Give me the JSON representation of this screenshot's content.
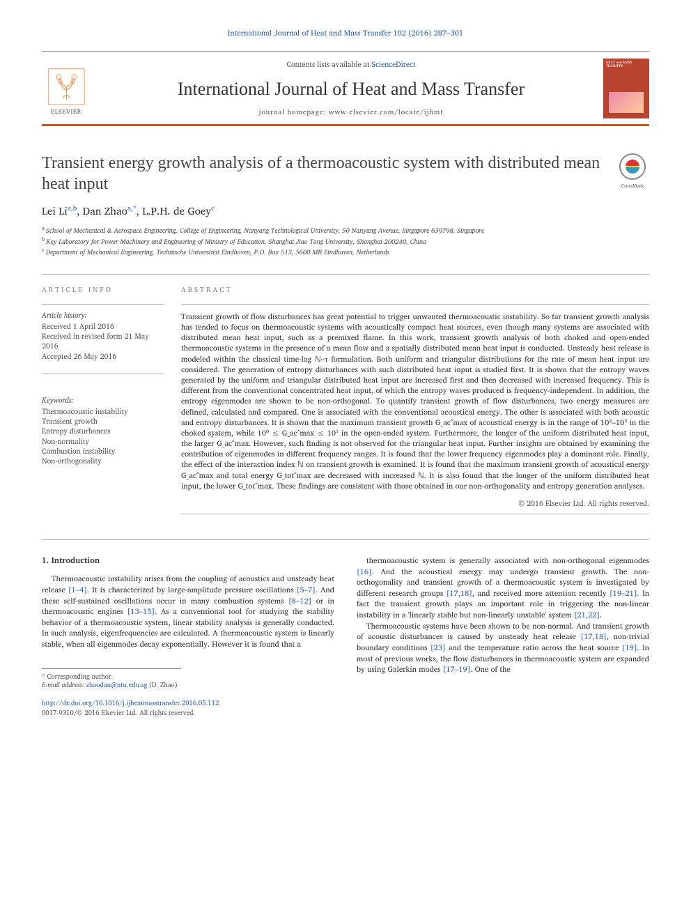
{
  "journal_ref": "International Journal of Heat and Mass Transfer 102 (2016) 287–301",
  "masthead": {
    "contents_prefix": "Contents lists available at ",
    "contents_link": "ScienceDirect",
    "journal_name": "International Journal of Heat and Mass Transfer",
    "homepage_prefix": "journal homepage: ",
    "homepage_url": "www.elsevier.com/locate/ijhmt",
    "publisher_name": "ELSEVIER",
    "cover_text": "HEAT and MASS TRANSFER"
  },
  "colors": {
    "orange_rule": "#c85a1e",
    "link": "#2a5db0",
    "cover_bg": "#b8432f",
    "text": "#333333",
    "muted": "#555555"
  },
  "article": {
    "title": "Transient energy growth analysis of a thermoacoustic system with distributed mean heat input",
    "crossmark_label": "CrossMark",
    "authors_html": "Lei Li<sup>a,b</sup>, Dan Zhao<sup>a,*</sup>, L.P.H. de Goey<sup>c</sup>",
    "affiliations": [
      {
        "sup": "a",
        "text": "School of Mechanical & Aerospace Engineering, College of Engineering, Nanyang Technological University, 50 Nanyang Avenue, Singapore 639798, Singapore"
      },
      {
        "sup": "b",
        "text": "Key Laboratory for Power Machinery and Engineering of Ministry of Education, Shanghai Jiao Tong University, Shanghai 200240, China"
      },
      {
        "sup": "c",
        "text": "Department of Mechanical Engineering, Technische Universiteit Eindhoven, P.O. Box 513, 5600 MB Eindhoven, Netherlands"
      }
    ]
  },
  "info": {
    "label": "ARTICLE INFO",
    "history_head": "Article history:",
    "history": [
      "Received 1 April 2016",
      "Received in revised form 21 May 2016",
      "Accepted 26 May 2016"
    ],
    "keywords_head": "Keywords:",
    "keywords": [
      "Thermoacoustic instability",
      "Transient growth",
      "Entropy disturbances",
      "Non-normality",
      "Combustion instability",
      "Non-orthogonality"
    ]
  },
  "abstract": {
    "label": "ABSTRACT",
    "text": "Transient growth of flow disturbances has great potential to trigger unwanted thermoacoustic instability. So far transient growth analysis has tended to focus on thermoacoustic systems with acoustically compact heat sources, even though many systems are associated with distributed mean heat input, such as a premixed flame. In this work, transient growth analysis of both choked and open-ended thermoacoustic systems in the presence of a mean flow and a spatially distributed mean heat input is conducted. Unsteady heat release is modeled within the classical time-lag ℕ–τ formulation. Both uniform and triangular distributions for the rate of mean heat input are considered. The generation of entropy disturbances with such distributed heat input is studied first. It is shown that the entropy waves generated by the uniform and triangular distributed heat input are increased first and then decreased with increased frequency. This is different from the conventional concentrated heat input, of which the entropy waves produced is frequency-independent. In addition, the entropy eigenmodes are shown to be non-orthogonal. To quantify transient growth of flow disturbances, two energy measures are defined, calculated and compared. One is associated with the conventional acoustical energy. The other is associated with both acoustic and entropy disturbances. It is shown that the maximum transient growth G_ac^max of acoustical energy is in the range of 10²–10³ in the choked system, while 10⁰ ≤ G_ac^max ≤ 10¹ in the open-ended system. Furthermore, the longer of the uniform distributed heat input, the larger G_ac^max. However, such finding is not observed for the triangular heat input. Further insights are obtained by examining the contribution of eigenmodes in different frequency ranges. It is found that the lower frequency eigenmodes play a dominant role. Finally, the effect of the interaction index ℕ on transient growth is examined. It is found that the maximum transient growth of acoustical energy G_ac^max and total energy G_tot^max are decreased with increased ℕ. It is also found that the longer of the uniform distributed heat input, the lower G_tot^max. These findings are consistent with those obtained in our non-orthogonality and entropy generation analyses.",
    "copyright": "© 2016 Elsevier Ltd. All rights reserved."
  },
  "intro": {
    "heading": "1. Introduction",
    "col1": "Thermoacoustic instability arises from the coupling of acoustics and unsteady heat release [1–4]. It is characterized by large-amplitude pressure oscillations [5–7]. And these self-sustained oscillations occur in many combustion systems [8–12] or in thermoacoustic engines [13–15]. As a conventional tool for studying the stability behavior of a thermoacoustic system, linear stability analysis is generally conducted. In such analysis, eigenfrequencies are calculated. A thermoacoustic system is linearly stable, when all eigenmodes decay exponentially. However it is found that a",
    "col2_p1": "thermoacoustic system is generally associated with non-orthogonal eigenmodes [16]. And the acoustical energy may undergo transient growth. The non-orthogonality and transient growth of a thermoacoustic system is investigated by different research groups [17,18], and received more attention recently [19–21]. In fact the transient growth plays an important role in triggering the non-linear instability in a 'linearly stable but non-linearly unstable' system [21,22].",
    "col2_p2": "Thermoacoustic systems have been shown to be non-normal. And transient growth of acoustic disturbances is caused by unsteady heat release [17,18], non-trivial boundary conditions [23] and the temperature ratio across the heat source [19]. In most of previous works, the flow disturbances in thermoacoustic system are expanded by using Galerkin modes [17–19]. One of the"
  },
  "footnote": {
    "corr": "* Corresponding author.",
    "email_label": "E-mail address:",
    "email": "zhaodan@ntu.edu.sg",
    "email_suffix": "(D. Zhao)."
  },
  "doi": {
    "url": "http://dx.doi.org/10.1016/j.ijheatmasstransfer.2016.05.112",
    "issn_line": "0017-9310/© 2016 Elsevier Ltd. All rights reserved."
  }
}
